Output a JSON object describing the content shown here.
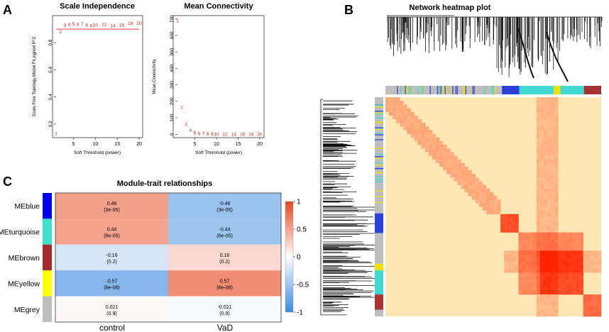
{
  "panel_labels": {
    "a": "A",
    "b": "B",
    "c": "C"
  },
  "chart_data": [
    {
      "id": "scale_independence",
      "type": "scatter",
      "title": "Scale Independence",
      "xlabel": "Soft Threshold (power)",
      "ylabel": "Scale Free Topology Model Fit,signed R^2",
      "xlim": [
        1,
        20
      ],
      "ylim": [
        0.1,
        1.0
      ],
      "xticks": [
        "5",
        "10",
        "15",
        "20"
      ],
      "yticks": [
        "0.2",
        "0.4",
        "0.6",
        "0.8"
      ],
      "cutoff_line": 0.9,
      "points": [
        {
          "label": "1",
          "x": 1,
          "y": 0.13
        },
        {
          "label": "2",
          "x": 2,
          "y": 0.88
        },
        {
          "label": "3",
          "x": 3,
          "y": 0.93
        },
        {
          "label": "4",
          "x": 4,
          "y": 0.935
        },
        {
          "label": "5",
          "x": 5,
          "y": 0.94
        },
        {
          "label": "6",
          "x": 6,
          "y": 0.935
        },
        {
          "label": "7",
          "x": 7,
          "y": 0.94
        },
        {
          "label": "8",
          "x": 8,
          "y": 0.93
        },
        {
          "label": "9",
          "x": 9,
          "y": 0.925
        },
        {
          "label": "10",
          "x": 10,
          "y": 0.93
        },
        {
          "label": "12",
          "x": 12,
          "y": 0.935
        },
        {
          "label": "14",
          "x": 14,
          "y": 0.925
        },
        {
          "label": "16",
          "x": 16,
          "y": 0.93
        },
        {
          "label": "18",
          "x": 18,
          "y": 0.945
        },
        {
          "label": "20",
          "x": 20,
          "y": 0.945
        }
      ]
    },
    {
      "id": "mean_connectivity",
      "type": "scatter",
      "title": "Mean Connectivity",
      "xlabel": "Soft Threshold (power)",
      "ylabel": "Mean Connectivity",
      "xlim": [
        1,
        20
      ],
      "ylim": [
        -20,
        720
      ],
      "xticks": [
        "5",
        "10",
        "15",
        "20"
      ],
      "yticks": [
        "0",
        "100",
        "200",
        "300",
        "400",
        "500",
        "600",
        "700"
      ],
      "points": [
        {
          "label": "1",
          "x": 1,
          "y": 690
        },
        {
          "label": "2",
          "x": 2,
          "y": 165
        },
        {
          "label": "3",
          "x": 3,
          "y": 60
        },
        {
          "label": "4",
          "x": 4,
          "y": 25
        },
        {
          "label": "5",
          "x": 5,
          "y": 12
        },
        {
          "label": "6",
          "x": 6,
          "y": 6
        },
        {
          "label": "7",
          "x": 7,
          "y": 4
        },
        {
          "label": "8",
          "x": 8,
          "y": 2
        },
        {
          "label": "9",
          "x": 9,
          "y": 1
        },
        {
          "label": "10",
          "x": 10,
          "y": 0
        },
        {
          "label": "12",
          "x": 12,
          "y": 0
        },
        {
          "label": "14",
          "x": 14,
          "y": 0
        },
        {
          "label": "16",
          "x": 16,
          "y": 0
        },
        {
          "label": "18",
          "x": 18,
          "y": 0
        },
        {
          "label": "20",
          "x": 20,
          "y": 0
        }
      ]
    },
    {
      "id": "network_heatmap",
      "type": "heatmap",
      "title": "Network heatmap plot",
      "module_bar_colors": [
        "#bebebe",
        "#f0e000",
        "#2a40d8",
        "#40d8d0",
        "#a83232"
      ],
      "modules": [
        "grey",
        "yellow",
        "blue",
        "turquoise",
        "brown"
      ]
    },
    {
      "id": "module_trait",
      "type": "heatmap",
      "title": "Module-trait relationships",
      "rows": [
        "MEblue",
        "MEturquoise",
        "MEbrown",
        "MEyellow",
        "MEgrey"
      ],
      "row_colors": [
        "#0000ee",
        "#40e0d0",
        "#a52a2a",
        "#ffff00",
        "#bebebe"
      ],
      "columns": [
        "control",
        "VaD"
      ],
      "cells": [
        [
          {
            "value": 0.46,
            "text": "0.46",
            "p": "(3e-05)"
          },
          {
            "value": -0.46,
            "text": "-0.46",
            "p": "(3e-05)"
          }
        ],
        [
          {
            "value": 0.44,
            "text": "0.44",
            "p": "(6e-05)"
          },
          {
            "value": -0.44,
            "text": "-0.44",
            "p": "(6e-05)"
          }
        ],
        [
          {
            "value": -0.16,
            "text": "-0.16",
            "p": "(0.2)"
          },
          {
            "value": 0.16,
            "text": "0.16",
            "p": "(0.2)"
          }
        ],
        [
          {
            "value": -0.57,
            "text": "-0.57",
            "p": "(6e-08)"
          },
          {
            "value": 0.57,
            "text": "0.57",
            "p": "(6e-08)"
          }
        ],
        [
          {
            "value": 0.021,
            "text": "0.021",
            "p": "(0.9)"
          },
          {
            "value": -0.021,
            "text": "-0.021",
            "p": "(0.9)"
          }
        ]
      ],
      "scale_range": [
        -1,
        1
      ],
      "scale_ticks": [
        "1",
        "0.5",
        "0",
        "-0.5",
        "-1"
      ],
      "scale_colors": {
        "low": "#3c8ae0",
        "mid": "#ffffff",
        "high": "#e8471e"
      }
    }
  ]
}
